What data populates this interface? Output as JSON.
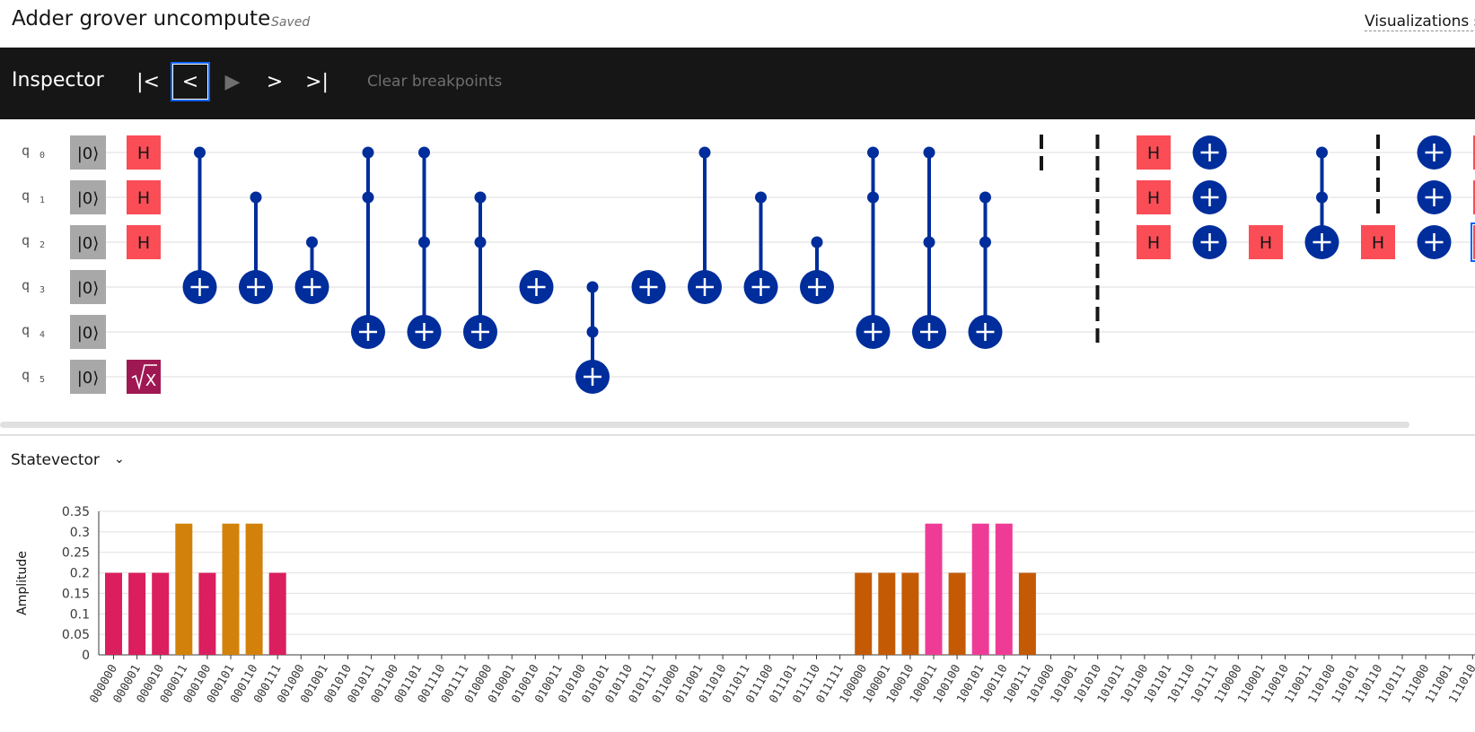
{
  "header": {
    "title": "Adder grover uncompute",
    "saved": "Saved",
    "viz_link": "Visualizations s"
  },
  "inspector": {
    "title": "Inspector",
    "controls": [
      {
        "name": "first-step-button",
        "glyph": "|<",
        "state": "enabled"
      },
      {
        "name": "previous-step-button",
        "glyph": "<",
        "state": "active"
      },
      {
        "name": "play-button",
        "glyph": "▶",
        "state": "disabled"
      },
      {
        "name": "next-step-button",
        "glyph": ">",
        "state": "enabled"
      },
      {
        "name": "last-step-button",
        "glyph": ">|",
        "state": "enabled"
      }
    ],
    "clear_breakpoints": "Clear breakpoints"
  },
  "circuit": {
    "qubit_prefix": "q",
    "qubits": [
      "0",
      "1",
      "2",
      "3",
      "4",
      "5"
    ],
    "init_label": "|0⟩",
    "gates": [
      {
        "t": "H",
        "col": 0,
        "q": 0
      },
      {
        "t": "H",
        "col": 0,
        "q": 1
      },
      {
        "t": "H",
        "col": 0,
        "q": 2
      },
      {
        "t": "SX",
        "col": 0,
        "q": 5
      },
      {
        "t": "CX",
        "col": 1,
        "c": [
          0
        ],
        "target": 3
      },
      {
        "t": "CX",
        "col": 2,
        "c": [
          1
        ],
        "target": 3
      },
      {
        "t": "CX",
        "col": 3,
        "c": [
          2
        ],
        "target": 3
      },
      {
        "t": "CX",
        "col": 4,
        "c": [
          0,
          1
        ],
        "target": 4
      },
      {
        "t": "CX",
        "col": 5,
        "c": [
          0,
          2
        ],
        "target": 4
      },
      {
        "t": "CX",
        "col": 6,
        "c": [
          1,
          2
        ],
        "target": 4
      },
      {
        "t": "X",
        "col": 7,
        "q": 3
      },
      {
        "t": "CX",
        "col": 8,
        "c": [
          3,
          4
        ],
        "target": 5
      },
      {
        "t": "X",
        "col": 9,
        "q": 3
      },
      {
        "t": "CX",
        "col": 10,
        "c": [
          0
        ],
        "target": 3
      },
      {
        "t": "CX",
        "col": 11,
        "c": [
          1
        ],
        "target": 3
      },
      {
        "t": "CX",
        "col": 12,
        "c": [
          2
        ],
        "target": 3
      },
      {
        "t": "CX",
        "col": 13,
        "c": [
          0,
          1
        ],
        "target": 4
      },
      {
        "t": "CX",
        "col": 14,
        "c": [
          0,
          2
        ],
        "target": 4
      },
      {
        "t": "CX",
        "col": 15,
        "c": [
          1,
          2
        ],
        "target": 4
      },
      {
        "t": "BARRIER",
        "col": 16,
        "from": 0,
        "to": 0
      },
      {
        "t": "BARRIER",
        "col": 17,
        "from": 0,
        "to": 4
      },
      {
        "t": "H",
        "col": 18,
        "q": 0
      },
      {
        "t": "H",
        "col": 18,
        "q": 1
      },
      {
        "t": "H",
        "col": 18,
        "q": 2
      },
      {
        "t": "X",
        "col": 19,
        "q": 0
      },
      {
        "t": "X",
        "col": 19,
        "q": 1
      },
      {
        "t": "X",
        "col": 19,
        "q": 2
      },
      {
        "t": "H",
        "col": 20,
        "q": 2
      },
      {
        "t": "CX",
        "col": 21,
        "c": [
          0,
          1
        ],
        "target": 2
      },
      {
        "t": "BARRIER",
        "col": 22,
        "from": 0,
        "to": 1
      },
      {
        "t": "H",
        "col": 22,
        "q": 2
      },
      {
        "t": "X",
        "col": 23,
        "q": 0
      },
      {
        "t": "X",
        "col": 23,
        "q": 1
      },
      {
        "t": "X",
        "col": 23,
        "q": 2
      },
      {
        "t": "H",
        "col": 24,
        "q": 0
      },
      {
        "t": "H",
        "col": 24,
        "q": 1
      },
      {
        "t": "H",
        "col": 24,
        "q": 2,
        "selected": true
      }
    ]
  },
  "statevector": {
    "selector_label": "Statevector"
  },
  "colors": {
    "h_gate": "#fa4d56",
    "sx_gate": "#9f1853",
    "cnot": "#002d9c",
    "init_box": "#a8a8a8",
    "barrier": "#161616",
    "selection": "#0f62fe"
  },
  "chart_data": {
    "type": "bar",
    "ylabel": "Amplitude",
    "ylim": [
      0,
      0.35
    ],
    "yticks": [
      "0",
      "0.05",
      "0.1",
      "0.15",
      "0.2",
      "0.25",
      "0.3",
      "0.35"
    ],
    "grid": true,
    "categories": [
      "000000",
      "000001",
      "000010",
      "000011",
      "000100",
      "000101",
      "000110",
      "000111",
      "001000",
      "001001",
      "001010",
      "001011",
      "001100",
      "001101",
      "001110",
      "001111",
      "010000",
      "010001",
      "010010",
      "010011",
      "010100",
      "010101",
      "010110",
      "010111",
      "011000",
      "011001",
      "011010",
      "011011",
      "011100",
      "011101",
      "011110",
      "011111",
      "100000",
      "100001",
      "100010",
      "100011",
      "100100",
      "100101",
      "100110",
      "100111",
      "101000",
      "101001",
      "101010",
      "101011",
      "101100",
      "101101",
      "101110",
      "101111",
      "110000",
      "110001",
      "110010",
      "110011",
      "110100",
      "110101",
      "110110",
      "110111",
      "111000",
      "111001",
      "111010"
    ],
    "values": [
      0.2,
      0.2,
      0.2,
      0.32,
      0.2,
      0.32,
      0.32,
      0.2,
      0,
      0,
      0,
      0,
      0,
      0,
      0,
      0,
      0,
      0,
      0,
      0,
      0,
      0,
      0,
      0,
      0,
      0,
      0,
      0,
      0,
      0,
      0,
      0,
      0.2,
      0.2,
      0.2,
      0.32,
      0.2,
      0.32,
      0.32,
      0.2,
      0,
      0,
      0,
      0,
      0,
      0,
      0,
      0,
      0,
      0,
      0,
      0,
      0,
      0,
      0,
      0,
      0,
      0,
      0
    ],
    "bar_colors": [
      "#da1e5e",
      "#da1e5e",
      "#da1e5e",
      "#d2820a",
      "#da1e5e",
      "#d2820a",
      "#d2820a",
      "#da1e5e",
      "#da1e5e",
      "#da1e5e",
      "#da1e5e",
      "#da1e5e",
      "#da1e5e",
      "#da1e5e",
      "#da1e5e",
      "#da1e5e",
      "#da1e5e",
      "#da1e5e",
      "#da1e5e",
      "#da1e5e",
      "#da1e5e",
      "#da1e5e",
      "#da1e5e",
      "#da1e5e",
      "#da1e5e",
      "#da1e5e",
      "#da1e5e",
      "#da1e5e",
      "#da1e5e",
      "#da1e5e",
      "#da1e5e",
      "#da1e5e",
      "#c45a04",
      "#c45a04",
      "#c45a04",
      "#ee3c96",
      "#c45a04",
      "#ee3c96",
      "#ee3c96",
      "#c45a04",
      "#c45a04",
      "#c45a04",
      "#c45a04",
      "#c45a04",
      "#c45a04",
      "#c45a04",
      "#c45a04",
      "#c45a04",
      "#c45a04",
      "#c45a04",
      "#c45a04",
      "#c45a04",
      "#c45a04",
      "#c45a04",
      "#c45a04",
      "#c45a04",
      "#c45a04",
      "#c45a04",
      "#c45a04"
    ]
  }
}
